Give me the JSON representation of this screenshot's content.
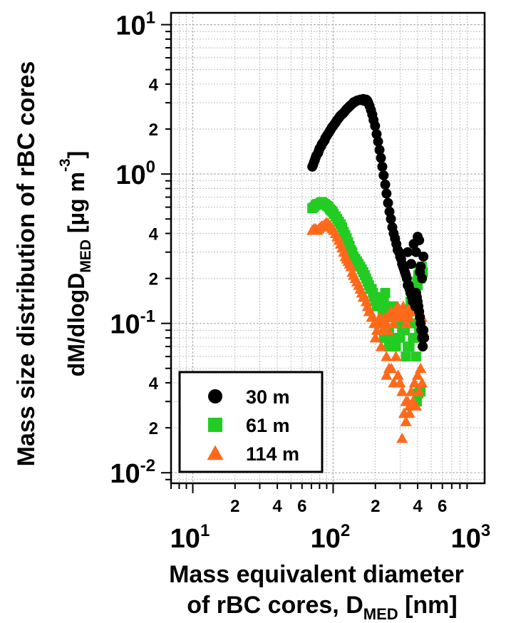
{
  "chart_data": {
    "type": "scatter",
    "xscale": "log",
    "yscale": "log",
    "xlim": [
      7,
      1200
    ],
    "ylim": [
      0.0085,
      12
    ],
    "grid": true,
    "legend_position": "bottom-left",
    "ylabel_line1": "Mass size distribution of rBC cores",
    "ylabel_line2_prefix": "dM/dlogD",
    "ylabel_line2_sub": "MED",
    "ylabel_line2_suffix": " [µg m",
    "ylabel_line2_sup": "-3",
    "ylabel_line2_end": "]",
    "xlabel_line1": "Mass equivalent diameter",
    "xlabel_line2_prefix": "of rBC cores, D",
    "xlabel_line2_sub": "MED",
    "xlabel_line2_suffix": " [nm]",
    "x_major_ticks": [
      {
        "value": 10,
        "base": "10",
        "exp": "1"
      },
      {
        "value": 100,
        "base": "10",
        "exp": "2"
      },
      {
        "value": 1000,
        "base": "10",
        "exp": "3"
      }
    ],
    "x_minor_labels": [
      {
        "value": 20,
        "label": "2"
      },
      {
        "value": 40,
        "label": "4"
      },
      {
        "value": 60,
        "label": "6"
      },
      {
        "value": 200,
        "label": "2"
      },
      {
        "value": 400,
        "label": "4"
      },
      {
        "value": 600,
        "label": "6"
      }
    ],
    "y_major_ticks": [
      {
        "value": 10,
        "base": "10",
        "exp": "1"
      },
      {
        "value": 1,
        "base": "10",
        "exp": "0"
      },
      {
        "value": 0.1,
        "base": "10",
        "exp": "-1"
      },
      {
        "value": 0.01,
        "base": "10",
        "exp": "-2"
      }
    ],
    "y_minor_labels": [
      {
        "value": 4,
        "label": "4"
      },
      {
        "value": 2,
        "label": "2"
      },
      {
        "value": 0.4,
        "label": "4"
      },
      {
        "value": 0.2,
        "label": "2"
      },
      {
        "value": 0.04,
        "label": "4"
      },
      {
        "value": 0.02,
        "label": "2"
      }
    ],
    "series": [
      {
        "name": "30 m",
        "marker": "circle",
        "color": "#000000",
        "x": [
          71,
          72,
          73,
          74,
          75,
          76,
          78,
          79,
          80,
          82,
          83,
          85,
          87,
          88,
          90,
          92,
          94,
          96,
          98,
          100,
          103,
          105,
          107,
          110,
          112,
          115,
          118,
          121,
          124,
          127,
          130,
          133,
          137,
          140,
          144,
          148,
          152,
          156,
          160,
          164,
          168,
          172,
          175,
          178,
          182,
          186,
          190,
          194,
          199,
          204,
          209,
          214,
          219,
          224,
          229,
          235,
          240,
          246,
          252,
          258,
          264,
          270,
          276,
          282,
          288,
          295,
          300,
          305,
          310,
          315,
          320,
          325,
          330,
          335,
          340,
          345,
          350,
          355,
          360,
          365,
          370,
          375,
          380,
          385,
          390,
          395,
          400,
          405,
          410,
          415,
          420,
          425,
          430,
          435,
          440,
          445,
          375,
          390,
          410,
          420,
          340,
          360,
          400,
          430,
          415,
          440
        ],
        "y": [
          1.12,
          1.15,
          1.2,
          1.24,
          1.29,
          1.33,
          1.38,
          1.43,
          1.48,
          1.53,
          1.58,
          1.63,
          1.68,
          1.74,
          1.8,
          1.86,
          1.92,
          1.98,
          2.05,
          2.1,
          2.18,
          2.24,
          2.3,
          2.38,
          2.44,
          2.5,
          2.55,
          2.62,
          2.7,
          2.76,
          2.82,
          2.88,
          2.95,
          3.02,
          3.05,
          3.1,
          3.12,
          3.15,
          3.12,
          3.18,
          3.08,
          3.15,
          3.1,
          3.0,
          2.85,
          2.68,
          2.5,
          2.3,
          2.1,
          1.85,
          1.65,
          1.45,
          1.28,
          1.12,
          0.98,
          0.85,
          0.74,
          0.64,
          0.56,
          0.5,
          0.44,
          0.4,
          0.37,
          0.34,
          0.31,
          0.3,
          0.28,
          0.27,
          0.25,
          0.24,
          0.23,
          0.22,
          0.21,
          0.2,
          0.18,
          0.18,
          0.17,
          0.16,
          0.16,
          0.15,
          0.14,
          0.15,
          0.14,
          0.13,
          0.16,
          0.15,
          0.14,
          0.13,
          0.12,
          0.11,
          0.1,
          0.09,
          0.08,
          0.07,
          0.09,
          0.08,
          0.34,
          0.3,
          0.36,
          0.24,
          0.3,
          0.25,
          0.38,
          0.2,
          0.22,
          0.28
        ]
      },
      {
        "name": "61 m",
        "marker": "square",
        "color": "#22cc22",
        "x": [
          71,
          73,
          75,
          77,
          79,
          81,
          83,
          85,
          87,
          89,
          91,
          93,
          95,
          97,
          99,
          101,
          104,
          107,
          110,
          113,
          116,
          119,
          122,
          125,
          128,
          131,
          134,
          137,
          140,
          144,
          148,
          152,
          156,
          160,
          164,
          168,
          172,
          176,
          180,
          184,
          188,
          192,
          196,
          200,
          205,
          210,
          215,
          220,
          225,
          230,
          235,
          240,
          246,
          252,
          258,
          264,
          270,
          276,
          282,
          288,
          294,
          300,
          308,
          316,
          324,
          332,
          340,
          348,
          356,
          364,
          372,
          380,
          388,
          396,
          404,
          412,
          420,
          428,
          436,
          395,
          405,
          415,
          260,
          280,
          300,
          320,
          340,
          360,
          380,
          410,
          250,
          270,
          290,
          310,
          330,
          350,
          370,
          390,
          420,
          210,
          230,
          250,
          400
        ],
        "y": [
          0.59,
          0.6,
          0.62,
          0.63,
          0.63,
          0.64,
          0.65,
          0.64,
          0.63,
          0.62,
          0.61,
          0.6,
          0.58,
          0.57,
          0.56,
          0.54,
          0.52,
          0.5,
          0.48,
          0.46,
          0.44,
          0.41,
          0.39,
          0.37,
          0.35,
          0.33,
          0.31,
          0.3,
          0.28,
          0.27,
          0.26,
          0.25,
          0.24,
          0.23,
          0.22,
          0.21,
          0.2,
          0.19,
          0.18,
          0.17,
          0.17,
          0.16,
          0.15,
          0.14,
          0.13,
          0.14,
          0.15,
          0.13,
          0.12,
          0.14,
          0.16,
          0.13,
          0.12,
          0.11,
          0.12,
          0.13,
          0.12,
          0.11,
          0.1,
          0.11,
          0.12,
          0.1,
          0.1,
          0.11,
          0.09,
          0.1,
          0.11,
          0.12,
          0.14,
          0.13,
          0.15,
          0.17,
          0.16,
          0.19,
          0.21,
          0.23,
          0.2,
          0.24,
          0.22,
          0.03,
          0.034,
          0.035,
          0.08,
          0.07,
          0.08,
          0.09,
          0.07,
          0.1,
          0.08,
          0.09,
          0.09,
          0.07,
          0.1,
          0.09,
          0.06,
          0.07,
          0.08,
          0.06,
          0.035,
          0.1,
          0.08,
          0.07,
          0.18
        ]
      },
      {
        "name": "114 m",
        "marker": "triangle",
        "color": "#ff6a1a",
        "x": [
          71,
          73,
          75,
          77,
          79,
          81,
          83,
          85,
          87,
          89,
          91,
          93,
          95,
          97,
          99,
          101,
          104,
          107,
          110,
          113,
          116,
          119,
          122,
          125,
          128,
          131,
          134,
          137,
          140,
          144,
          148,
          152,
          156,
          160,
          164,
          168,
          172,
          176,
          180,
          184,
          188,
          192,
          196,
          200,
          205,
          210,
          215,
          220,
          225,
          230,
          235,
          240,
          246,
          252,
          258,
          264,
          270,
          276,
          282,
          288,
          294,
          300,
          308,
          316,
          324,
          332,
          340,
          348,
          356,
          364,
          372,
          380,
          388,
          396,
          404,
          412,
          420,
          428,
          436,
          250,
          270,
          290,
          310,
          330,
          350,
          200,
          220,
          240,
          260,
          300,
          320,
          340,
          360,
          380,
          400,
          420,
          310,
          330,
          350,
          370,
          390,
          410,
          430,
          240,
          280
        ],
        "y": [
          0.42,
          0.43,
          0.43,
          0.42,
          0.43,
          0.44,
          0.45,
          0.45,
          0.46,
          0.47,
          0.47,
          0.46,
          0.45,
          0.44,
          0.43,
          0.42,
          0.4,
          0.38,
          0.36,
          0.34,
          0.32,
          0.3,
          0.28,
          0.27,
          0.26,
          0.25,
          0.24,
          0.22,
          0.21,
          0.2,
          0.19,
          0.18,
          0.17,
          0.16,
          0.15,
          0.15,
          0.14,
          0.13,
          0.12,
          0.12,
          0.11,
          0.11,
          0.1,
          0.1,
          0.09,
          0.1,
          0.11,
          0.1,
          0.09,
          0.1,
          0.11,
          0.1,
          0.09,
          0.11,
          0.12,
          0.11,
          0.1,
          0.11,
          0.12,
          0.13,
          0.12,
          0.11,
          0.12,
          0.13,
          0.11,
          0.1,
          0.12,
          0.11,
          0.13,
          0.12,
          0.14,
          0.13,
          0.12,
          0.14,
          0.13,
          0.12,
          0.1,
          0.11,
          0.09,
          0.05,
          0.04,
          0.045,
          0.035,
          0.03,
          0.028,
          0.08,
          0.07,
          0.06,
          0.05,
          0.04,
          0.025,
          0.03,
          0.035,
          0.04,
          0.045,
          0.05,
          0.017,
          0.022,
          0.025,
          0.03,
          0.028,
          0.035,
          0.04,
          0.045,
          0.06
        ]
      }
    ]
  }
}
